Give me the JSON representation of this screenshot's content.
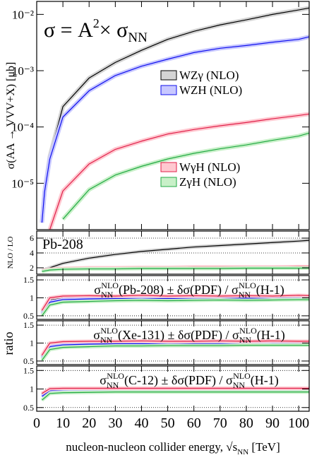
{
  "chart_data": [
    {
      "type": "line",
      "log_y": true,
      "title_parts": [
        "σ = A",
        "2",
        "× σ",
        "NN"
      ],
      "y_label": "σ(AA → VVV+X) [μb]",
      "xlim": [
        0,
        104
      ],
      "xticks": [
        0,
        10,
        20,
        30,
        40,
        50,
        60,
        70,
        80,
        90,
        100
      ],
      "ylim": [
        1.5e-06,
        0.017
      ],
      "yticks": [
        {
          "value": 1e-05,
          "label": "10⁻⁵"
        },
        {
          "value": 0.0001,
          "label": "10⁻⁴"
        },
        {
          "value": 0.001,
          "label": "10⁻³"
        },
        {
          "value": 0.01,
          "label": "10⁻²"
        }
      ],
      "grid": false,
      "x": [
        2,
        3,
        5,
        10,
        20,
        30,
        40,
        50,
        60,
        70,
        80,
        90,
        100,
        104
      ],
      "series": [
        {
          "name": "WZγ (NLO)",
          "color": "#000000",
          "fill": "#d4d4d4",
          "values": [
            2e-06,
            7e-06,
            3e-05,
            0.00023,
            0.00074,
            0.0014,
            0.0023,
            0.0036,
            0.005,
            0.0065,
            0.008,
            0.01,
            0.012,
            0.013
          ]
        },
        {
          "name": "WZH (NLO)",
          "color": "#1010ee",
          "fill": "#c8c8ff",
          "values": [
            2e-06,
            7e-06,
            2.7e-05,
            0.00015,
            0.00044,
            0.00082,
            0.0012,
            0.0016,
            0.0021,
            0.0025,
            0.0028,
            0.0032,
            0.0036,
            0.004
          ]
        },
        {
          "name": "WγH (NLO)",
          "color": "#e0204a",
          "fill": "#ffc8d0",
          "values": [
            null,
            null,
            1.5e-06,
            7.3e-06,
            2.2e-05,
            4e-05,
            5.6e-05,
            7.5e-05,
            9e-05,
            0.000105,
            0.00012,
            0.00014,
            0.00016,
            0.00017
          ]
        },
        {
          "name": "ZγH (NLO)",
          "color": "#22aa44",
          "fill": "#c8f0c8",
          "values": [
            null,
            null,
            null,
            2.3e-06,
            7.7e-06,
            1.4e-05,
            2e-05,
            2.7e-05,
            3.4e-05,
            4.1e-05,
            4.8e-05,
            5.8e-05,
            6.9e-05,
            7.8e-05
          ]
        }
      ]
    },
    {
      "type": "line",
      "text": "Pb-208",
      "y_label": "NLO / LO",
      "xlim": [
        0,
        104
      ],
      "xticks": [
        0,
        10,
        20,
        30,
        40,
        50,
        60,
        70,
        80,
        90,
        100
      ],
      "ylim": [
        1.14,
        6.95
      ],
      "yticks": [
        2,
        4,
        6
      ],
      "grid": true,
      "x": [
        2,
        5,
        10,
        20,
        30,
        40,
        50,
        60,
        70,
        80,
        90,
        100,
        104
      ],
      "series": [
        {
          "color": "#000000",
          "fill": "#d4d4d4",
          "values": [
            1.6,
            2.0,
            2.6,
            3.3,
            3.8,
            4.2,
            4.5,
            4.8,
            5.0,
            5.2,
            5.4,
            5.6,
            5.7
          ]
        },
        {
          "color": "#1010ee",
          "fill": "#c8c8ff",
          "values": [
            1.6,
            1.8,
            1.85,
            1.9,
            1.9,
            1.9,
            1.95,
            1.95,
            1.95,
            2,
            2,
            2,
            2
          ]
        },
        {
          "color": "#e0204a",
          "fill": "#ffc8d0",
          "values": [
            1.6,
            1.8,
            1.9,
            2.0,
            2.0,
            2.05,
            2.05,
            2.1,
            2.1,
            2.1,
            2.1,
            2.15,
            2.15
          ]
        },
        {
          "color": "#22aa44",
          "fill": "#c8f0c8",
          "values": [
            1.5,
            1.7,
            1.8,
            1.85,
            1.85,
            1.9,
            1.9,
            1.9,
            1.9,
            1.95,
            1.95,
            1.95,
            1.95
          ]
        }
      ]
    },
    {
      "type": "line",
      "label_parts": [
        "σ",
        "NN",
        "NLO",
        "(Pb-208) ± δσ(PDF) / σ",
        "NN",
        "NLO",
        "(H-1)"
      ],
      "xlim": [
        0,
        104
      ],
      "xticks": [
        0,
        10,
        20,
        30,
        40,
        50,
        60,
        70,
        80,
        90,
        100
      ],
      "ylim": [
        0.4,
        1.62
      ],
      "yticks": [
        0.5,
        1,
        1.5
      ],
      "grid": true,
      "x": [
        2,
        5,
        10,
        20,
        30,
        40,
        50,
        60,
        70,
        80,
        90,
        100,
        104
      ],
      "series": [
        {
          "color": "#000000",
          "fill": "#d4d4d4",
          "values": [
            0.6,
            0.95,
            1.0,
            1.02,
            1.03,
            1.02,
            1.03,
            1.02,
            1.03,
            1.02,
            1.03,
            1.02,
            1.03
          ]
        },
        {
          "color": "#1010ee",
          "fill": "#c8c8ff",
          "values": [
            0.55,
            0.88,
            0.95,
            0.97,
            0.98,
            0.97,
            0.98,
            0.97,
            0.98,
            0.99,
            0.98,
            0.99,
            0.98
          ]
        },
        {
          "color": "#e0204a",
          "fill": "#ffc8d0",
          "values": [
            0.65,
            1.0,
            1.05,
            1.06,
            1.05,
            1.07,
            1.05,
            1.06,
            1.05,
            1.06,
            1.05,
            1.07,
            1.06
          ]
        },
        {
          "color": "#22aa44",
          "fill": "#c8f0c8",
          "values": [
            0.5,
            0.8,
            0.88,
            0.9,
            0.92,
            0.93,
            0.92,
            0.93,
            0.94,
            0.93,
            0.94,
            0.95,
            0.95
          ]
        }
      ]
    },
    {
      "type": "line",
      "y_label": "ratio",
      "label_parts": [
        "σ",
        "NN",
        "NLO",
        "(Xe-131) ± δσ(PDF) / σ",
        "NN",
        "NLO",
        "(H-1)"
      ],
      "xlim": [
        0,
        104
      ],
      "xticks": [
        0,
        10,
        20,
        30,
        40,
        50,
        60,
        70,
        80,
        90,
        100
      ],
      "ylim": [
        0.4,
        1.62
      ],
      "yticks": [
        0.5,
        1,
        1.5
      ],
      "grid": true,
      "x": [
        2,
        5,
        10,
        20,
        30,
        40,
        50,
        60,
        70,
        80,
        90,
        100,
        104
      ],
      "series": [
        {
          "color": "#000000",
          "fill": "#d4d4d4",
          "values": [
            0.62,
            0.97,
            1.0,
            1.02,
            1.02,
            1.02,
            1.03,
            1.02,
            1.02,
            1.03,
            1.02,
            1.02,
            1.02
          ]
        },
        {
          "color": "#1010ee",
          "fill": "#c8c8ff",
          "values": [
            0.58,
            0.9,
            0.95,
            0.97,
            0.98,
            0.98,
            0.97,
            0.98,
            0.98,
            0.97,
            0.98,
            0.98,
            0.98
          ]
        },
        {
          "color": "#e0204a",
          "fill": "#ffc8d0",
          "values": [
            0.66,
            1.0,
            1.04,
            1.05,
            1.05,
            1.06,
            1.05,
            1.05,
            1.06,
            1.05,
            1.06,
            1.05,
            1.05
          ]
        },
        {
          "color": "#22aa44",
          "fill": "#c8f0c8",
          "values": [
            0.52,
            0.82,
            0.88,
            0.9,
            0.92,
            0.92,
            0.93,
            0.93,
            0.93,
            0.94,
            0.94,
            0.94,
            0.94
          ]
        }
      ]
    },
    {
      "type": "line",
      "label_parts": [
        "σ",
        "NN",
        "NLO",
        "(C-12) ± δσ(PDF) / σ",
        "NN",
        "NLO",
        "(H-1)"
      ],
      "x_label_parts": [
        "nucleon-nucleon collider energy, √",
        "s",
        "NN",
        " [TeV]"
      ],
      "xlim": [
        0,
        104
      ],
      "xticks": [
        0,
        10,
        20,
        30,
        40,
        50,
        60,
        70,
        80,
        90,
        100
      ],
      "ylim": [
        0.4,
        1.62
      ],
      "yticks": [
        0.5,
        1,
        1.5
      ],
      "grid": true,
      "x": [
        2,
        5,
        10,
        20,
        30,
        40,
        50,
        60,
        70,
        80,
        90,
        100,
        104
      ],
      "series": [
        {
          "color": "#000000",
          "fill": "#d4d4d4",
          "values": [
            0.85,
            0.99,
            1.0,
            1.01,
            1.01,
            1.01,
            1.01,
            1.01,
            1.01,
            1.01,
            1.01,
            1.01,
            1.01
          ]
        },
        {
          "color": "#1010ee",
          "fill": "#c8c8ff",
          "values": [
            0.8,
            0.96,
            0.98,
            0.99,
            0.99,
            0.99,
            0.99,
            0.99,
            0.99,
            0.99,
            0.99,
            0.99,
            0.99
          ]
        },
        {
          "color": "#e0204a",
          "fill": "#ffc8d0",
          "values": [
            0.88,
            1.01,
            1.02,
            1.02,
            1.02,
            1.02,
            1.02,
            1.02,
            1.02,
            1.02,
            1.02,
            1.02,
            1.02
          ]
        },
        {
          "color": "#22aa44",
          "fill": "#c8f0c8",
          "values": [
            0.7,
            0.88,
            0.9,
            0.91,
            0.92,
            0.92,
            0.92,
            0.92,
            0.92,
            0.92,
            0.92,
            0.92,
            0.92
          ]
        }
      ]
    }
  ]
}
